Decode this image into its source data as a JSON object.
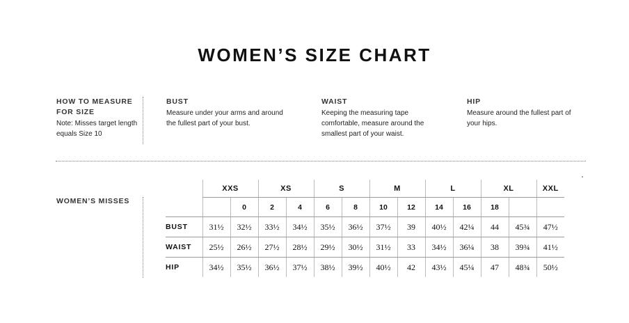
{
  "title": "WOMEN’S SIZE CHART",
  "how_to_measure": {
    "heading": "HOW TO MEASURE FOR SIZE",
    "note": "Note: Misses target length equals Size 10"
  },
  "measures": [
    {
      "heading": "BUST",
      "text": "Measure under your arms and around the fullest part of your bust."
    },
    {
      "heading": "WAIST",
      "text": "Keeping the measuring tape comfortable, measure around the smallest part of your waist."
    },
    {
      "heading": "HIP",
      "text": "Measure around the fullest part of your hips."
    }
  ],
  "section_label": "WOMEN’S MISSES",
  "table": {
    "size_groups": [
      "XXS",
      "XS",
      "S",
      "M",
      "L",
      "XL",
      "XXL"
    ],
    "numeric_sizes": [
      "",
      "0",
      "2",
      "4",
      "6",
      "8",
      "10",
      "12",
      "14",
      "16",
      "18",
      "",
      ""
    ],
    "rows": [
      {
        "label": "BUST",
        "values": [
          "31½",
          "32½",
          "33½",
          "34½",
          "35½",
          "36½",
          "37½",
          "39",
          "40½",
          "42¼",
          "44",
          "45¾",
          "47½"
        ]
      },
      {
        "label": "WAIST",
        "values": [
          "25½",
          "26½",
          "27½",
          "28½",
          "29½",
          "30½",
          "31½",
          "33",
          "34½",
          "36¼",
          "38",
          "39¾",
          "41½"
        ]
      },
      {
        "label": "HIP",
        "values": [
          "34½",
          "35½",
          "36½",
          "37½",
          "38½",
          "39½",
          "40½",
          "42",
          "43½",
          "45¼",
          "47",
          "48¾",
          "50½"
        ]
      }
    ]
  }
}
